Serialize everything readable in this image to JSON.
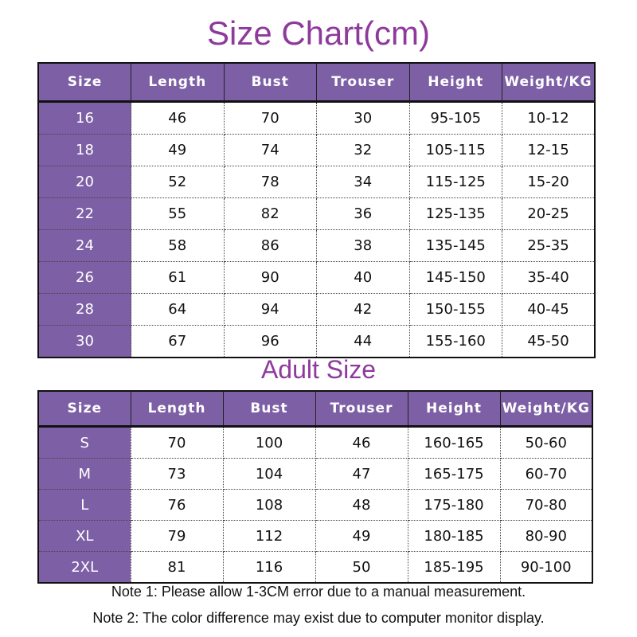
{
  "title": "Size Chart(cm)",
  "kids_table": {
    "headers": [
      "Size",
      "Length",
      "Bust",
      "Trouser",
      "Height",
      "Weight/KG"
    ],
    "rows": [
      [
        "16",
        "46",
        "70",
        "30",
        "95-105",
        "10-12"
      ],
      [
        "18",
        "49",
        "74",
        "32",
        "105-115",
        "12-15"
      ],
      [
        "20",
        "52",
        "78",
        "34",
        "115-125",
        "15-20"
      ],
      [
        "22",
        "55",
        "82",
        "36",
        "125-135",
        "20-25"
      ],
      [
        "24",
        "58",
        "86",
        "38",
        "135-145",
        "25-35"
      ],
      [
        "26",
        "61",
        "90",
        "40",
        "145-150",
        "35-40"
      ],
      [
        "28",
        "64",
        "94",
        "42",
        "150-155",
        "40-45"
      ],
      [
        "30",
        "67",
        "96",
        "44",
        "155-160",
        "45-50"
      ]
    ]
  },
  "adult_title": "Adult Size",
  "adult_table": {
    "headers": [
      "Size",
      "Length",
      "Bust",
      "Trouser",
      "Height",
      "Weight/KG"
    ],
    "rows": [
      [
        "S",
        "70",
        "100",
        "46",
        "160-165",
        "50-60"
      ],
      [
        "M",
        "73",
        "104",
        "47",
        "165-175",
        "60-70"
      ],
      [
        "L",
        "76",
        "108",
        "48",
        "175-180",
        "70-80"
      ],
      [
        "XL",
        "79",
        "112",
        "49",
        "180-185",
        "80-90"
      ],
      [
        "2XL",
        "81",
        "116",
        "50",
        "185-195",
        "90-100"
      ]
    ]
  },
  "notes": [
    "Note 1: Please allow 1-3CM error due to a manual measurement.",
    "Note 2: The color difference may exist due to computer monitor display."
  ],
  "colors": {
    "header": "#7d5fa5",
    "title": "#8e3a9c"
  }
}
